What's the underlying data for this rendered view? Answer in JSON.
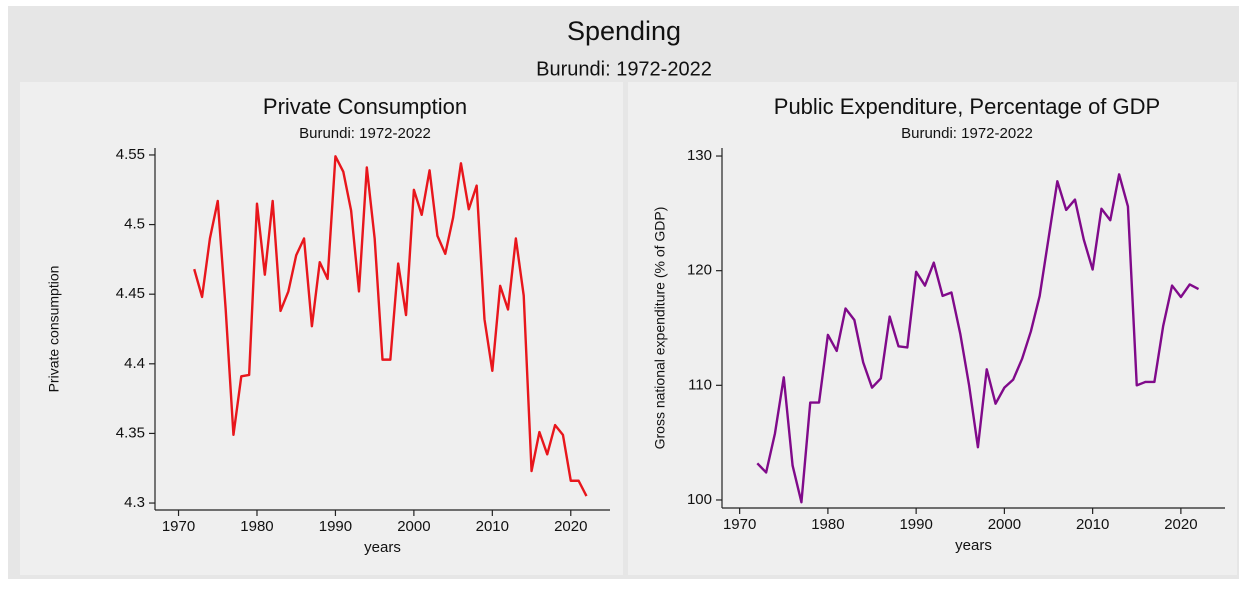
{
  "title": "Spending",
  "subtitle": "Burundi: 1972-2022",
  "chart_data": [
    {
      "type": "line",
      "title": "Private Consumption",
      "subtitle": "Burundi: 1972-2022",
      "xlabel": "years",
      "ylabel": "Private consumption",
      "color": "#e8161c",
      "x": [
        1972,
        1973,
        1974,
        1975,
        1976,
        1977,
        1978,
        1979,
        1980,
        1981,
        1982,
        1983,
        1984,
        1985,
        1986,
        1987,
        1988,
        1989,
        1990,
        1991,
        1992,
        1993,
        1994,
        1995,
        1996,
        1997,
        1998,
        1999,
        2000,
        2001,
        2002,
        2003,
        2004,
        2005,
        2006,
        2007,
        2008,
        2009,
        2010,
        2011,
        2012,
        2013,
        2014,
        2015,
        2016,
        2017,
        2018,
        2019,
        2020,
        2021,
        2022
      ],
      "values": [
        4.468,
        4.448,
        4.49,
        4.517,
        4.44,
        4.349,
        4.391,
        4.392,
        4.515,
        4.464,
        4.517,
        4.438,
        4.452,
        4.478,
        4.49,
        4.427,
        4.473,
        4.461,
        4.549,
        4.538,
        4.51,
        4.452,
        4.541,
        4.49,
        4.403,
        4.403,
        4.472,
        4.435,
        4.525,
        4.507,
        4.539,
        4.492,
        4.479,
        4.505,
        4.544,
        4.511,
        4.528,
        4.432,
        4.395,
        4.456,
        4.439,
        4.49,
        4.449,
        4.323,
        4.351,
        4.335,
        4.356,
        4.349,
        4.316,
        4.316,
        4.305
      ],
      "xlim": [
        1967,
        2025
      ],
      "ylim": [
        4.295,
        4.555
      ],
      "xticks": [
        1970,
        1980,
        1990,
        2000,
        2010,
        2020
      ],
      "yticks": [
        4.3,
        4.35,
        4.4,
        4.45,
        4.5,
        4.55
      ]
    },
    {
      "type": "line",
      "title": "Public Expenditure, Percentage of GDP",
      "subtitle": "Burundi: 1972-2022",
      "xlabel": "years",
      "ylabel": "Gross national expenditure (% of GDP)",
      "color": "#800a8a",
      "x": [
        1972,
        1973,
        1974,
        1975,
        1976,
        1977,
        1978,
        1979,
        1980,
        1981,
        1982,
        1983,
        1984,
        1985,
        1986,
        1987,
        1988,
        1989,
        1990,
        1991,
        1992,
        1993,
        1994,
        1995,
        1996,
        1997,
        1998,
        1999,
        2000,
        2001,
        2002,
        2003,
        2004,
        2005,
        2006,
        2007,
        2008,
        2009,
        2010,
        2011,
        2012,
        2013,
        2014,
        2015,
        2016,
        2017,
        2018,
        2019,
        2020,
        2021,
        2022
      ],
      "values": [
        103.2,
        102.4,
        105.8,
        110.7,
        103,
        99.8,
        108.5,
        108.5,
        114.4,
        113,
        116.7,
        115.7,
        112,
        109.8,
        110.6,
        116,
        113.4,
        113.3,
        119.9,
        118.7,
        120.7,
        117.8,
        118.1,
        114.5,
        110,
        104.6,
        111.4,
        108.4,
        109.8,
        110.5,
        112.3,
        114.7,
        117.8,
        122.8,
        127.8,
        125.3,
        126.2,
        122.7,
        120.1,
        125.4,
        124.4,
        128.4,
        125.6,
        110,
        110.3,
        110.3,
        115.2,
        118.7,
        117.7,
        118.8,
        118.4
      ],
      "xlim": [
        1968,
        2025
      ],
      "ylim": [
        99.3,
        130.7
      ],
      "xticks": [
        1970,
        1980,
        1990,
        2000,
        2010,
        2020
      ],
      "yticks": [
        100,
        110,
        120,
        130
      ]
    }
  ]
}
